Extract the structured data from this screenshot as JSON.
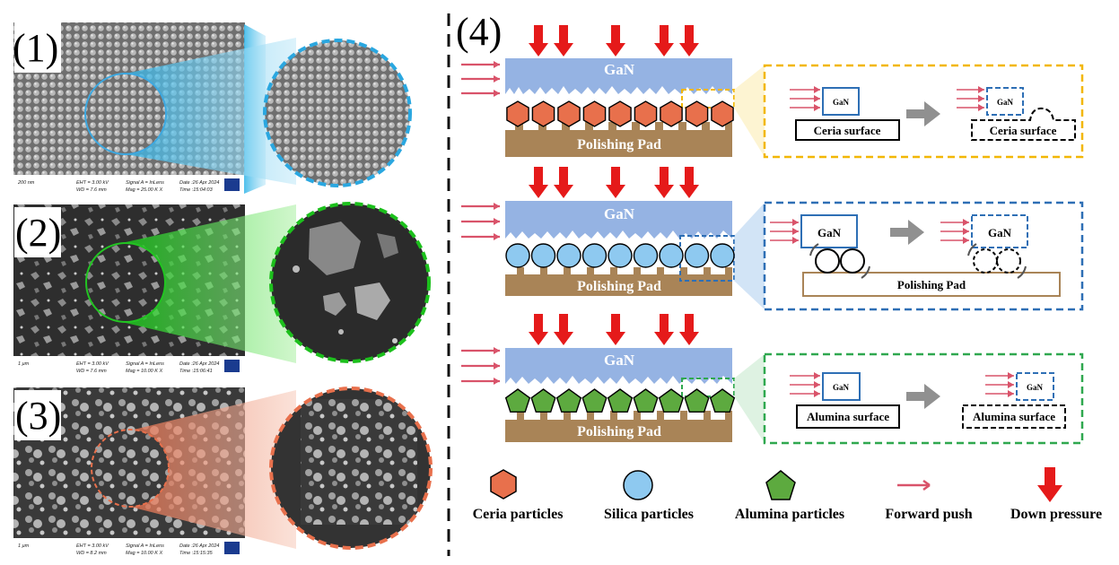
{
  "panels": {
    "p1": "(1)",
    "p2": "(2)",
    "p3": "(3)",
    "p4": "(4)"
  },
  "sem": [
    {
      "scale": "200 nm",
      "col1": [
        "EHT = 3.00 kV",
        "WD = 7.6 mm"
      ],
      "col2": [
        "Signal A = InLens",
        "Mag = 25.00 K X"
      ],
      "col3": [
        "Date :26 Apr 2024",
        "Time :15:04:03"
      ],
      "brand": "ZEISS"
    },
    {
      "scale": "1 μm",
      "col1": [
        "EHT = 3.00 kV",
        "WD = 7.6 mm"
      ],
      "col2": [
        "Signal A = InLens",
        "Mag = 10.00 K X"
      ],
      "col3": [
        "Date :26 Apr 2024",
        "Time :15:06:41"
      ],
      "brand": "ZEISS"
    },
    {
      "scale": "1 μm",
      "col1": [
        "EHT = 3.00 kV",
        "WD = 8.2 mm"
      ],
      "col2": [
        "Signal A = InLens",
        "Mag = 10.00 K X"
      ],
      "col3": [
        "Date :26 Apr 2024",
        "Time :15:15:35"
      ],
      "brand": "ZEISS"
    }
  ],
  "rows": [
    {
      "wafer": "GaN",
      "pad": "Polishing Pad",
      "inset_gan": "GaN",
      "surface": "Ceria surface",
      "surface_after": "Ceria surface",
      "particle": "hexagon",
      "color": "#E8704C",
      "frame": "#F2B705"
    },
    {
      "wafer": "GaN",
      "pad": "Polishing Pad",
      "inset_gan": "GaN",
      "surface": "Polishing Pad",
      "particle": "circle",
      "color": "#8EC9F0",
      "frame": "#2E6FB5"
    },
    {
      "wafer": "GaN",
      "pad": "Polishing Pad",
      "inset_gan": "GaN",
      "surface": "Alumina surface",
      "surface_after": "Alumina surface",
      "particle": "pentagon",
      "color": "#5DAA3F",
      "frame": "#2FA84F"
    }
  ],
  "legend": {
    "ceria": "Ceria particles",
    "silica": "Silica particles",
    "alumina": "Alumina particles",
    "push": "Forward push",
    "pressure": "Down pressure"
  },
  "colors": {
    "wafer": "#95B3E3",
    "pad": "#A98457",
    "arrow_red": "#E51A1A",
    "push_arrow": "#D9536A",
    "cone1": "#2FB4E8",
    "cone2": "#22CC22",
    "cone3": "#E8704C"
  },
  "icons": [
    "down-pressure-arrow-icon",
    "forward-push-arrow-icon",
    "grey-transition-arrow-icon"
  ]
}
